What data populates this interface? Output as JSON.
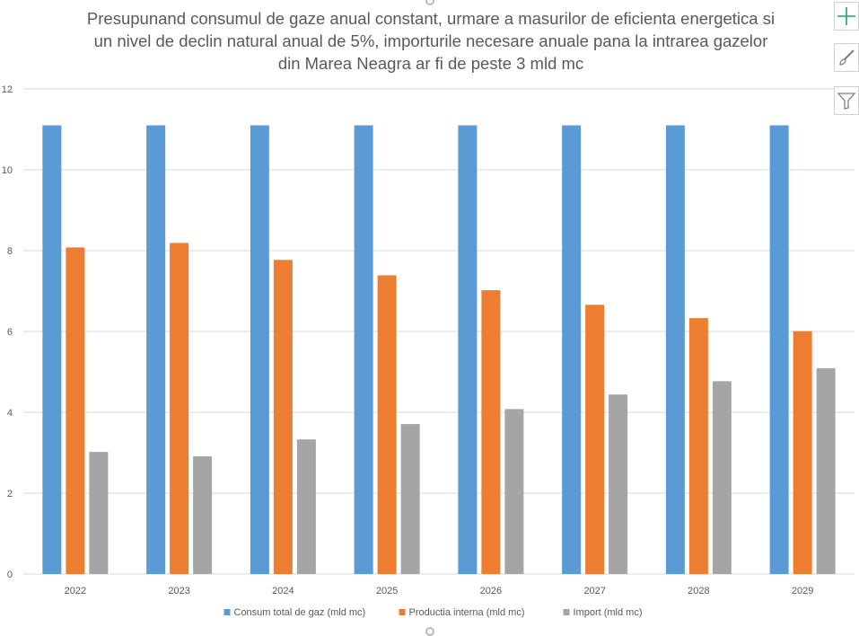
{
  "chart_data": {
    "type": "bar",
    "title": "Presupunand consumul de gaze anual constant, urmare a masurilor de eficienta energetica si un nivel de declin natural anual de 5%, importurile necesare anuale pana la intrarea gazelor din Marea Neagra ar fi de peste 3 mld mc",
    "title_lines": [
      "Presupunand consumul de gaze anual constant, urmare a masurilor de eficienta energetica si",
      "un nivel de declin natural anual de 5%, importurile necesare anuale pana la intrarea gazelor",
      "din Marea Neagra ar fi de peste 3 mld mc"
    ],
    "categories": [
      "2022",
      "2023",
      "2024",
      "2025",
      "2026",
      "2027",
      "2028",
      "2029"
    ],
    "series": [
      {
        "name": "Consum total de gaz (mld mc)",
        "color": "#5b9bd5",
        "values": [
          11.1,
          11.1,
          11.1,
          11.1,
          11.1,
          11.1,
          11.1,
          11.1
        ]
      },
      {
        "name": "Productia interna (mld mc)",
        "color": "#ed7d31",
        "values": [
          8.08,
          8.19,
          7.77,
          7.39,
          7.02,
          6.66,
          6.33,
          6.01
        ]
      },
      {
        "name": "Import (mld mc)",
        "color": "#a5a5a5",
        "values": [
          3.02,
          2.91,
          3.33,
          3.71,
          4.08,
          4.44,
          4.77,
          5.09
        ]
      }
    ],
    "yticks": [
      "0",
      "2",
      "4",
      "6",
      "8",
      "10",
      "12"
    ],
    "ylim": [
      0,
      12
    ],
    "grid": true,
    "gridline_color": "#d9d9d9",
    "legend_position": "bottom"
  },
  "toolbar": {
    "add_icon": "plus-icon",
    "style_icon": "brush-icon",
    "filter_icon": "funnel-icon",
    "add_color": "#21a366"
  }
}
